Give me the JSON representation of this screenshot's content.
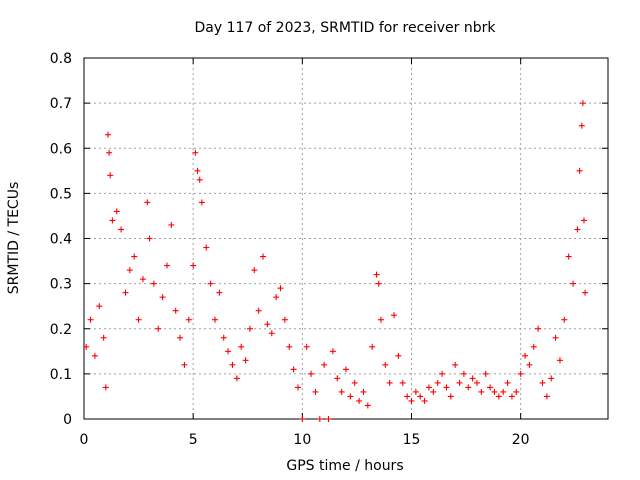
{
  "chart_data": {
    "type": "scatter",
    "title": "Day 117 of 2023, SRMTID for receiver nbrk",
    "xlabel": "GPS time / hours",
    "ylabel": "SRMTID / TECUs",
    "xlim": [
      0,
      24
    ],
    "ylim": [
      0,
      0.8
    ],
    "x_ticks": [
      0,
      5,
      10,
      15,
      20
    ],
    "x_tick_labels": [
      "0",
      "5",
      "10",
      "15",
      "20"
    ],
    "y_ticks": [
      0,
      0.1,
      0.2,
      0.3,
      0.4,
      0.5,
      0.6,
      0.7,
      0.8
    ],
    "y_tick_labels": [
      "0",
      "0.1",
      "0.2",
      "0.3",
      "0.4",
      "0.5",
      "0.6",
      "0.7",
      "0.8"
    ],
    "grid": true,
    "marker": "+",
    "color": "#ff0000",
    "series": [
      {
        "name": "SRMTID",
        "points": [
          [
            0.1,
            0.16
          ],
          [
            0.3,
            0.22
          ],
          [
            0.5,
            0.14
          ],
          [
            0.7,
            0.25
          ],
          [
            0.9,
            0.18
          ],
          [
            1.0,
            0.07
          ],
          [
            1.1,
            0.63
          ],
          [
            1.15,
            0.59
          ],
          [
            1.2,
            0.54
          ],
          [
            1.3,
            0.44
          ],
          [
            1.5,
            0.46
          ],
          [
            1.7,
            0.42
          ],
          [
            1.9,
            0.28
          ],
          [
            2.1,
            0.33
          ],
          [
            2.3,
            0.36
          ],
          [
            2.5,
            0.22
          ],
          [
            2.7,
            0.31
          ],
          [
            2.9,
            0.48
          ],
          [
            3.0,
            0.4
          ],
          [
            3.2,
            0.3
          ],
          [
            3.4,
            0.2
          ],
          [
            3.6,
            0.27
          ],
          [
            3.8,
            0.34
          ],
          [
            4.0,
            0.43
          ],
          [
            4.2,
            0.24
          ],
          [
            4.4,
            0.18
          ],
          [
            4.6,
            0.12
          ],
          [
            4.8,
            0.22
          ],
          [
            5.0,
            0.34
          ],
          [
            5.1,
            0.59
          ],
          [
            5.2,
            0.55
          ],
          [
            5.3,
            0.53
          ],
          [
            5.4,
            0.48
          ],
          [
            5.6,
            0.38
          ],
          [
            5.8,
            0.3
          ],
          [
            6.0,
            0.22
          ],
          [
            6.2,
            0.28
          ],
          [
            6.4,
            0.18
          ],
          [
            6.6,
            0.15
          ],
          [
            6.8,
            0.12
          ],
          [
            7.0,
            0.09
          ],
          [
            7.2,
            0.16
          ],
          [
            7.4,
            0.13
          ],
          [
            7.6,
            0.2
          ],
          [
            7.8,
            0.33
          ],
          [
            8.0,
            0.24
          ],
          [
            8.2,
            0.36
          ],
          [
            8.4,
            0.21
          ],
          [
            8.6,
            0.19
          ],
          [
            8.8,
            0.27
          ],
          [
            9.0,
            0.29
          ],
          [
            9.2,
            0.22
          ],
          [
            9.4,
            0.16
          ],
          [
            9.6,
            0.11
          ],
          [
            9.8,
            0.07
          ],
          [
            10.0,
            0.0
          ],
          [
            10.2,
            0.16
          ],
          [
            10.4,
            0.1
          ],
          [
            10.6,
            0.06
          ],
          [
            10.8,
            0.0
          ],
          [
            11.0,
            0.12
          ],
          [
            11.2,
            0.0
          ],
          [
            11.4,
            0.15
          ],
          [
            11.6,
            0.09
          ],
          [
            11.8,
            0.06
          ],
          [
            12.0,
            0.11
          ],
          [
            12.2,
            0.05
          ],
          [
            12.4,
            0.08
          ],
          [
            12.6,
            0.04
          ],
          [
            12.8,
            0.06
          ],
          [
            13.0,
            0.03
          ],
          [
            13.2,
            0.16
          ],
          [
            13.4,
            0.32
          ],
          [
            13.5,
            0.3
          ],
          [
            13.6,
            0.22
          ],
          [
            13.8,
            0.12
          ],
          [
            14.0,
            0.08
          ],
          [
            14.2,
            0.23
          ],
          [
            14.4,
            0.14
          ],
          [
            14.6,
            0.08
          ],
          [
            14.8,
            0.05
          ],
          [
            15.0,
            0.04
          ],
          [
            15.2,
            0.06
          ],
          [
            15.4,
            0.05
          ],
          [
            15.6,
            0.04
          ],
          [
            15.8,
            0.07
          ],
          [
            16.0,
            0.06
          ],
          [
            16.2,
            0.08
          ],
          [
            16.4,
            0.1
          ],
          [
            16.6,
            0.07
          ],
          [
            16.8,
            0.05
          ],
          [
            17.0,
            0.12
          ],
          [
            17.2,
            0.08
          ],
          [
            17.4,
            0.1
          ],
          [
            17.6,
            0.07
          ],
          [
            17.8,
            0.09
          ],
          [
            18.0,
            0.08
          ],
          [
            18.2,
            0.06
          ],
          [
            18.4,
            0.1
          ],
          [
            18.6,
            0.07
          ],
          [
            18.8,
            0.06
          ],
          [
            19.0,
            0.05
          ],
          [
            19.2,
            0.06
          ],
          [
            19.4,
            0.08
          ],
          [
            19.6,
            0.05
          ],
          [
            19.8,
            0.06
          ],
          [
            20.0,
            0.1
          ],
          [
            20.2,
            0.14
          ],
          [
            20.4,
            0.12
          ],
          [
            20.6,
            0.16
          ],
          [
            20.8,
            0.2
          ],
          [
            21.0,
            0.08
          ],
          [
            21.2,
            0.05
          ],
          [
            21.4,
            0.09
          ],
          [
            21.6,
            0.18
          ],
          [
            21.8,
            0.13
          ],
          [
            22.0,
            0.22
          ],
          [
            22.2,
            0.36
          ],
          [
            22.4,
            0.3
          ],
          [
            22.6,
            0.42
          ],
          [
            22.7,
            0.55
          ],
          [
            22.8,
            0.65
          ],
          [
            22.85,
            0.7
          ],
          [
            22.9,
            0.44
          ],
          [
            22.95,
            0.28
          ]
        ]
      }
    ]
  }
}
